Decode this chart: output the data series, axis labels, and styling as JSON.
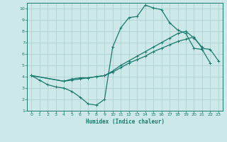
{
  "xlabel": "Humidex (Indice chaleur)",
  "bg_color": "#cce8e8",
  "grid_color": "#b0d0d0",
  "line_color": "#1a7a6e",
  "xlim": [
    -0.5,
    23.5
  ],
  "ylim": [
    1,
    10.5
  ],
  "xticks": [
    0,
    1,
    2,
    3,
    4,
    5,
    6,
    7,
    8,
    9,
    10,
    11,
    12,
    13,
    14,
    15,
    16,
    17,
    18,
    19,
    20,
    21,
    22,
    23
  ],
  "yticks": [
    1,
    2,
    3,
    4,
    5,
    6,
    7,
    8,
    9,
    10
  ],
  "line1_x": [
    0,
    1,
    2,
    3,
    4,
    5,
    6,
    7,
    8,
    9,
    10,
    11,
    12,
    13,
    14,
    15,
    16,
    17,
    18,
    19,
    20,
    21,
    22
  ],
  "line1_y": [
    4.1,
    3.7,
    3.3,
    3.1,
    3.0,
    2.7,
    2.2,
    1.6,
    1.5,
    2.0,
    6.6,
    8.3,
    9.2,
    9.3,
    10.3,
    10.05,
    9.9,
    8.75,
    8.1,
    7.8,
    6.5,
    6.4,
    5.2
  ],
  "line2_x": [
    0,
    4,
    5,
    6,
    7,
    8,
    9,
    10,
    11,
    12,
    13,
    14,
    15,
    16,
    17,
    18,
    19,
    20,
    21
  ],
  "line2_y": [
    4.1,
    3.6,
    3.8,
    3.9,
    3.9,
    4.0,
    4.1,
    4.5,
    5.0,
    5.4,
    5.8,
    6.2,
    6.6,
    7.0,
    7.4,
    7.8,
    8.0,
    7.4,
    6.6
  ],
  "line3_x": [
    0,
    4,
    5,
    6,
    7,
    8,
    9,
    10,
    11,
    12,
    13,
    14,
    15,
    16,
    17,
    18,
    19,
    20,
    21,
    22,
    23
  ],
  "line3_y": [
    4.1,
    3.6,
    3.7,
    3.8,
    3.9,
    4.0,
    4.1,
    4.4,
    4.8,
    5.2,
    5.5,
    5.8,
    6.2,
    6.5,
    6.8,
    7.1,
    7.3,
    7.5,
    6.5,
    6.4,
    5.4
  ]
}
